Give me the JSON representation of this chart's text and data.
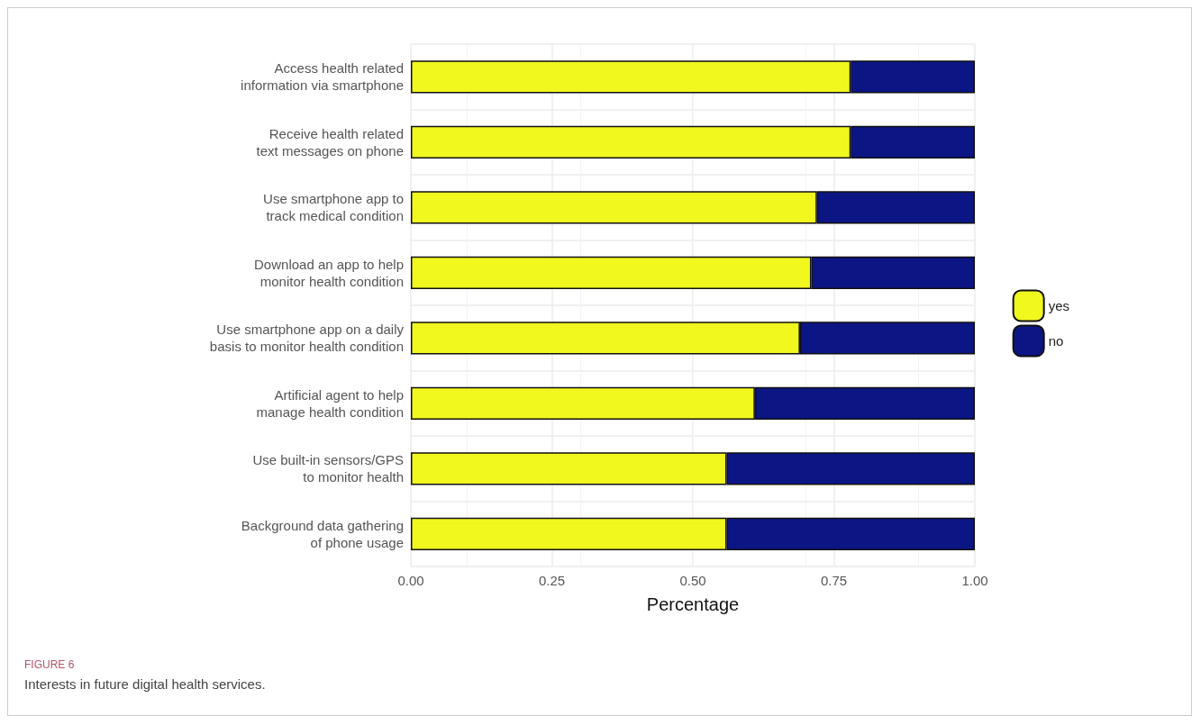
{
  "chart_data": {
    "type": "bar",
    "orientation": "horizontal",
    "stacked": true,
    "categories": [
      "Access health related\ninformation via smartphone",
      "Receive health related\ntext messages on phone",
      "Use smartphone app to\ntrack medical condition",
      "Download an app to help\nmonitor health condition",
      "Use smartphone app on a daily\nbasis to monitor health condition",
      "Artificial agent to help\nmanage health condition",
      "Use built-in sensors/GPS\nto monitor health",
      "Background data gathering\nof phone usage"
    ],
    "series": [
      {
        "name": "yes",
        "color": "#f0f81e",
        "values": [
          0.78,
          0.78,
          0.72,
          0.71,
          0.69,
          0.61,
          0.56,
          0.56
        ]
      },
      {
        "name": "no",
        "color": "#0c1584",
        "values": [
          0.22,
          0.22,
          0.28,
          0.29,
          0.31,
          0.39,
          0.44,
          0.44
        ]
      }
    ],
    "xlabel": "Percentage",
    "xlim": [
      0,
      1
    ],
    "xticks": [
      {
        "value": 0,
        "label": "0.00"
      },
      {
        "value": 0.25,
        "label": "0.25"
      },
      {
        "value": 0.5,
        "label": "0.50"
      },
      {
        "value": 0.75,
        "label": "0.75"
      },
      {
        "value": 1,
        "label": "1.00"
      }
    ],
    "grid": true,
    "legend": "right",
    "annotations": [
      "FIGURE 6",
      "Interests in future digital health services."
    ]
  }
}
